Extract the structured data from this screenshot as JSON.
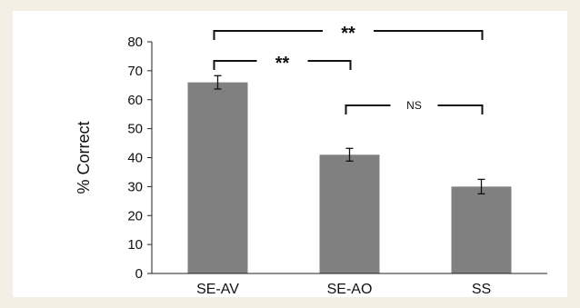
{
  "chart_data": {
    "type": "bar",
    "title": "",
    "xlabel": "",
    "ylabel": "% Correct",
    "ylim": [
      0,
      80
    ],
    "yticks": [
      0,
      10,
      20,
      30,
      40,
      50,
      60,
      70,
      80
    ],
    "categories": [
      "SE-AV",
      "SE-AO",
      "SS"
    ],
    "values": [
      66,
      41,
      30
    ],
    "errors": [
      2.3,
      2.2,
      2.5
    ],
    "bar_color": "#808080",
    "grid": false,
    "annotations": [
      {
        "from": "SE-AV",
        "to": "SS",
        "label": "**"
      },
      {
        "from": "SE-AV",
        "to": "SE-AO",
        "label": "**"
      },
      {
        "from": "SE-AO",
        "to": "SS",
        "label": "NS"
      }
    ]
  }
}
